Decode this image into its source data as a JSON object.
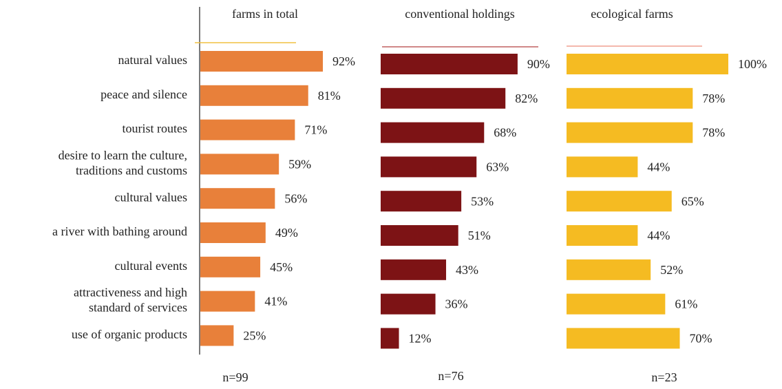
{
  "chart_data": [
    {
      "type": "bar",
      "orientation": "horizontal",
      "title": "farms in total",
      "note": "n=99",
      "color": "#e8803a",
      "categories": [
        [
          "natural values"
        ],
        [
          "peace and silence"
        ],
        [
          "tourist routes"
        ],
        [
          "desire to learn the culture,",
          "traditions and customs"
        ],
        [
          "cultural values"
        ],
        [
          "a river with bathing around"
        ],
        [
          "cultural events"
        ],
        [
          "attractiveness and high",
          "standard of services"
        ],
        [
          "use of organic products"
        ]
      ],
      "values": [
        92,
        81,
        71,
        59,
        56,
        49,
        45,
        41,
        25
      ],
      "value_labels": [
        "92%",
        "81%",
        "71%",
        "59%",
        "56%",
        "49%",
        "45%",
        "41%",
        "25%"
      ]
    },
    {
      "type": "bar",
      "orientation": "horizontal",
      "title": "conventional holdings",
      "note": "n=76",
      "color": "#7d1315",
      "values": [
        90,
        82,
        68,
        63,
        53,
        51,
        43,
        36,
        12
      ],
      "value_labels": [
        "90%",
        "82%",
        "68%",
        "63%",
        "53%",
        "51%",
        "43%",
        "36%",
        "12%"
      ]
    },
    {
      "type": "bar",
      "orientation": "horizontal",
      "title": "ecological farms",
      "note": "n=23",
      "color": "#f5bb22",
      "values": [
        100,
        78,
        78,
        44,
        65,
        44,
        52,
        61,
        70
      ],
      "value_labels": [
        "100%",
        "78%",
        "78%",
        "44%",
        "65%",
        "44%",
        "52%",
        "61%",
        "70%"
      ]
    }
  ]
}
